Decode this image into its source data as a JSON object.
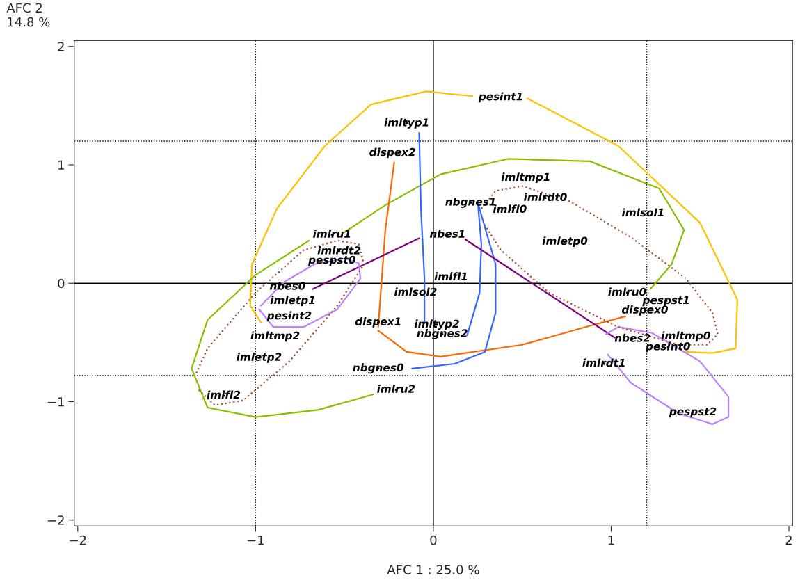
{
  "chart_data": {
    "type": "line",
    "xlabel": "AFC 1 : 25.0 %",
    "ylabel": "AFC 2\n14.8 %",
    "xlim": [
      -2.02,
      2.02
    ],
    "ylim": [
      -2.05,
      2.05
    ],
    "xticks": [
      {
        "value": -2,
        "label": "−2"
      },
      {
        "value": -1,
        "label": "−1"
      },
      0,
      1,
      2
    ],
    "yticks": [
      {
        "value": -2,
        "label": "−2"
      },
      {
        "value": -1,
        "label": "−1"
      },
      0,
      1,
      2
    ],
    "grid": false,
    "legend": false,
    "marker": "none",
    "ref_lines": [
      {
        "axis": "x",
        "value": 0,
        "line_style": "solid",
        "color": "#000000"
      },
      {
        "axis": "y",
        "value": 0,
        "line_style": "solid",
        "color": "#000000"
      },
      {
        "axis": "x",
        "value": -1,
        "line_style": "dotted",
        "color": "#000000"
      },
      {
        "axis": "x",
        "value": 1.2,
        "line_style": "dotted",
        "color": "#000000"
      },
      {
        "axis": "y",
        "value": 1.2,
        "line_style": "dotted",
        "color": "#000000"
      },
      {
        "axis": "y",
        "value": -0.78,
        "line_style": "dotted",
        "color": "#000000"
      }
    ],
    "series": [
      {
        "color": "#ffc000",
        "line_style": "solid",
        "x": [
          0.22,
          -0.04,
          -0.35,
          -0.61,
          -0.88,
          -1.02,
          -1.03,
          -0.97,
          null,
          0.53,
          1.04,
          1.5,
          1.71,
          1.7,
          1.57,
          1.42
        ],
        "values": [
          1.58,
          1.62,
          1.51,
          1.16,
          0.63,
          0.16,
          -0.19,
          -0.33,
          null,
          1.56,
          1.16,
          0.51,
          -0.14,
          -0.55,
          -0.59,
          -0.58
        ]
      },
      {
        "color": "#88c000",
        "line_style": "solid",
        "x": [
          -0.5,
          -0.27,
          0.04,
          0.42,
          0.88,
          1.27,
          1.41,
          1.34,
          1.22,
          null,
          -0.7,
          -1.0,
          -1.27,
          -1.36,
          -1.27,
          -1.0,
          -0.65,
          -0.34
        ],
        "values": [
          0.43,
          0.66,
          0.92,
          1.05,
          1.03,
          0.8,
          0.45,
          0.16,
          -0.05,
          null,
          0.36,
          0.07,
          -0.31,
          -0.72,
          -1.05,
          -1.13,
          -1.07,
          -0.94
        ]
      },
      {
        "color": "#ff6600",
        "line_style": "solid",
        "x": [
          -0.22,
          -0.27,
          -0.31,
          null,
          -0.31,
          -0.15,
          0.04,
          0.5,
          0.88,
          1.08
        ],
        "values": [
          1.02,
          0.45,
          -0.37,
          null,
          -0.4,
          -0.58,
          -0.62,
          -0.52,
          -0.36,
          -0.28
        ]
      },
      {
        "color": "#3366ff",
        "line_style": "solid",
        "x": [
          -0.08,
          -0.07,
          -0.05,
          -0.05
        ],
        "values": [
          1.27,
          0.63,
          0.04,
          -0.34
        ]
      },
      {
        "color": "#3366ff",
        "line_style": "solid",
        "x": [
          0.19,
          0.26,
          0.27,
          0.25,
          0.35,
          0.35,
          0.29,
          0.12,
          -0.12
        ],
        "values": [
          -0.44,
          -0.08,
          0.33,
          0.68,
          0.16,
          -0.25,
          -0.58,
          -0.68,
          -0.72
        ]
      },
      {
        "color": "#800080",
        "line_style": "solid",
        "x": [
          -0.68,
          -0.08,
          null,
          0.18,
          1.02
        ],
        "values": [
          -0.05,
          0.38,
          null,
          0.37,
          -0.46
        ]
      },
      {
        "color": "#c080ff",
        "line_style": "solid",
        "x": [
          -0.98,
          -0.9,
          -0.73,
          -0.54,
          -0.41,
          -0.42,
          -0.5,
          -0.67,
          -0.84,
          -0.97
        ],
        "values": [
          -0.22,
          -0.37,
          -0.37,
          -0.22,
          0.04,
          0.17,
          0.21,
          0.16,
          0.01,
          -0.19
        ]
      },
      {
        "color": "#c080ff",
        "line_style": "solid",
        "x": [
          0.97,
          1.04,
          1.23,
          1.5,
          1.66,
          1.66,
          1.57,
          1.38,
          1.11,
          0.98
        ],
        "values": [
          -0.43,
          -0.37,
          -0.42,
          -0.66,
          -0.96,
          -1.13,
          -1.19,
          -1.1,
          -0.84,
          -0.6
        ]
      },
      {
        "color": "#a0522d",
        "line_style": "dotted",
        "x": [
          -1.32,
          -1.23,
          -1.07,
          -0.81,
          -0.54,
          -0.39,
          -0.42,
          -0.54,
          -0.73,
          -1.0,
          -1.27,
          -1.34
        ],
        "values": [
          -0.9,
          -1.03,
          -0.99,
          -0.66,
          -0.19,
          0.16,
          0.33,
          0.36,
          0.28,
          -0.08,
          -0.55,
          -0.78
        ]
      },
      {
        "color": "#a0522d",
        "line_style": "dotted",
        "x": [
          0.27,
          0.35,
          0.5,
          0.77,
          1.11,
          1.42,
          1.57,
          1.6,
          1.54,
          1.38,
          1.04,
          0.65,
          0.38,
          0.28
        ],
        "values": [
          0.63,
          0.78,
          0.82,
          0.69,
          0.39,
          0.04,
          -0.25,
          -0.43,
          -0.52,
          -0.52,
          -0.37,
          -0.08,
          0.28,
          0.51
        ]
      },
      {
        "type": "scatter",
        "color": "#000000",
        "marker": "circle",
        "x": [
          0.38,
          -0.15,
          -0.23,
          0.52,
          0.63,
          0.21,
          0.43,
          1.18,
          0.74,
          0.08,
          -0.57,
          -0.53,
          -0.57,
          -0.82,
          0.1,
          -0.1,
          -0.79,
          -0.81,
          -0.31,
          0.02,
          0.05,
          -0.89,
          -0.98,
          -0.31,
          -1.18,
          -0.21,
          1.09,
          1.31,
          1.19,
          1.42,
          1.12,
          1.32,
          0.96,
          1.46
        ],
        "values": [
          1.57,
          1.35,
          1.1,
          0.89,
          0.72,
          0.68,
          0.62,
          0.59,
          0.35,
          0.41,
          0.41,
          0.27,
          0.19,
          -0.03,
          0.05,
          -0.08,
          -0.15,
          -0.28,
          -0.33,
          -0.35,
          -0.43,
          -0.45,
          -0.63,
          -0.72,
          -0.95,
          -0.9,
          -0.08,
          -0.15,
          -0.23,
          -0.45,
          -0.47,
          -0.54,
          -0.68,
          -1.09
        ],
        "value_labels": [
          "pesint1",
          "imltyp1",
          "dispex2",
          "imltmp1",
          "imlrdt0",
          "nbgnes1",
          "imlfl0",
          "imlsol1",
          "imletp0",
          "nbes1",
          "imlru1",
          "imlrdt2",
          "pespst0",
          "nbes0",
          "imlfl1",
          "imlsol2",
          "imletp1",
          "pesint2",
          "dispex1",
          "imltyp2",
          "nbgnes2",
          "imltmp2",
          "imletp2",
          "nbgnes0",
          "imlfl2",
          "imlru2",
          "imlru0",
          "pespst1",
          "dispex0",
          "imltmp0",
          "nbes2",
          "pesint0",
          "imlrdt1",
          "pespst2"
        ]
      }
    ]
  }
}
